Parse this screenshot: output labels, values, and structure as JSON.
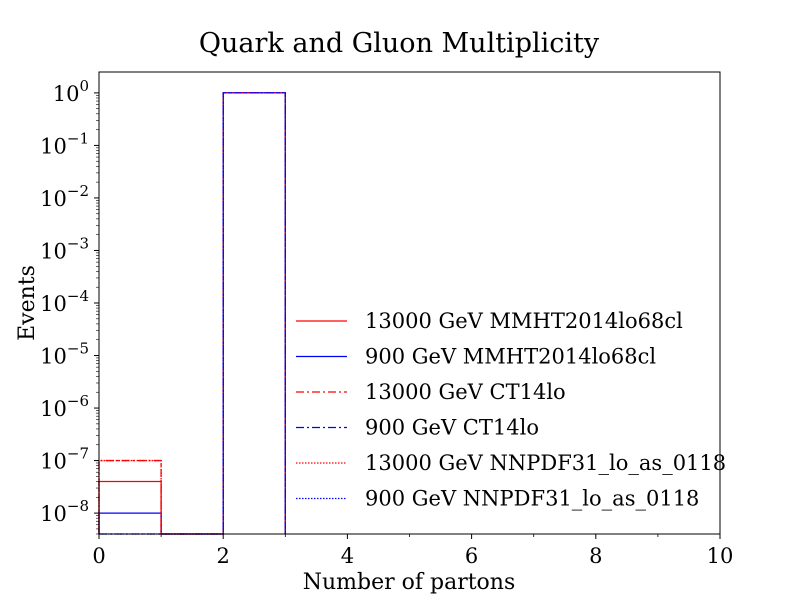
{
  "chart_data": {
    "type": "step-histogram",
    "title": "Quark and Gluon Multiplicity",
    "xlabel": "Number of partons",
    "ylabel": "Events",
    "xlim": [
      0,
      10
    ],
    "ylim": [
      4e-09,
      2.5
    ],
    "yscale": "log",
    "grid": false,
    "legend_position": "lower-right",
    "x_ticks": [
      "0",
      "2",
      "4",
      "6",
      "8",
      "10"
    ],
    "y_ticks": [
      {
        "value": 1e-08,
        "base": "10",
        "exp": "−8"
      },
      {
        "value": 1e-07,
        "base": "10",
        "exp": "−7"
      },
      {
        "value": 1e-06,
        "base": "10",
        "exp": "−6"
      },
      {
        "value": 1e-05,
        "base": "10",
        "exp": "−5"
      },
      {
        "value": 0.0001,
        "base": "10",
        "exp": "−4"
      },
      {
        "value": 0.001,
        "base": "10",
        "exp": "−3"
      },
      {
        "value": 0.01,
        "base": "10",
        "exp": "−2"
      },
      {
        "value": 0.1,
        "base": "10",
        "exp": "−1"
      },
      {
        "value": 1,
        "base": "10",
        "exp": "0"
      }
    ],
    "bin_edges": [
      0,
      1,
      2,
      3
    ],
    "series": [
      {
        "name": "13000 GeV MMHT2014lo68cl",
        "color": "#ff0000",
        "style": "solid",
        "values": [
          4e-08,
          0,
          1
        ]
      },
      {
        "name": "900 GeV MMHT2014lo68cl",
        "color": "#0000ff",
        "style": "solid",
        "values": [
          1e-08,
          0,
          1
        ]
      },
      {
        "name": "13000 GeV CT14lo",
        "color": "#ff0000",
        "style": "dashdot",
        "values": [
          1e-07,
          0,
          1
        ]
      },
      {
        "name": "900 GeV CT14lo",
        "color": "#0000ff",
        "style": "dashdot",
        "values": [
          0,
          0,
          1
        ]
      },
      {
        "name": "13000 GeV NNPDF31_lo_as_0118",
        "color": "#ff0000",
        "style": "dotted",
        "values": [
          1e-07,
          0,
          1
        ]
      },
      {
        "name": "900 GeV NNPDF31_lo_as_0118",
        "color": "#0000ff",
        "style": "dotted",
        "values": [
          0,
          0,
          1
        ]
      }
    ]
  }
}
